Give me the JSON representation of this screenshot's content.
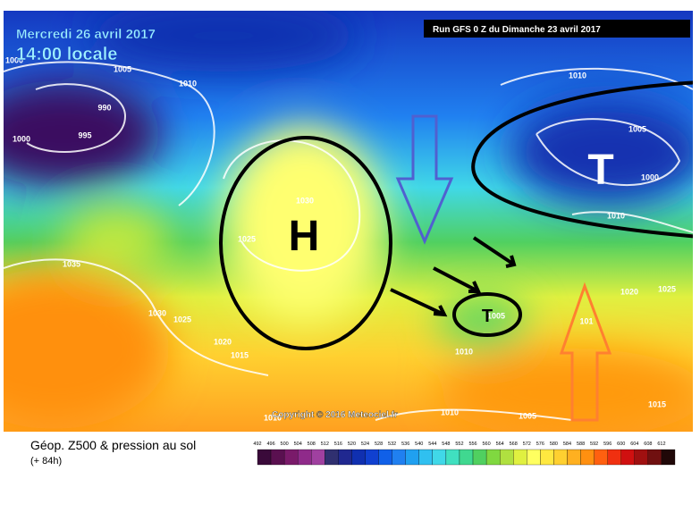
{
  "header": {
    "date": "Mercredi 26 avril 2017",
    "time": "14:00 locale",
    "run": "Run GFS 0 Z du Dimanche 23 avril 2017"
  },
  "map": {
    "isobars": [
      "1000",
      "1005",
      "1010",
      "990",
      "995",
      "1000",
      "1030",
      "1025",
      "1035",
      "1030",
      "1025",
      "1020",
      "1015",
      "1010",
      "1005",
      "1010",
      "1010",
      "1005",
      "1010",
      "1005",
      "1000",
      "1010",
      "1020",
      "1025",
      "101",
      "1015"
    ],
    "systems": [
      "H",
      "T",
      "T"
    ]
  },
  "footer": {
    "copyright": "Copyright © 2016 Meteociel.fr"
  },
  "legend": {
    "title": "Géop. Z500 & pression au sol",
    "subtitle": "(+ 84h)",
    "scale": [
      {
        "label": "492",
        "color": "#3a0a3a"
      },
      {
        "label": "496",
        "color": "#5a1050"
      },
      {
        "label": "500",
        "color": "#7a1a6a"
      },
      {
        "label": "504",
        "color": "#8f2a8a"
      },
      {
        "label": "508",
        "color": "#a040a0"
      },
      {
        "label": "512",
        "color": "#303070"
      },
      {
        "label": "516",
        "color": "#202890"
      },
      {
        "label": "520",
        "color": "#1030b0"
      },
      {
        "label": "524",
        "color": "#1040d0"
      },
      {
        "label": "528",
        "color": "#1060e8"
      },
      {
        "label": "532",
        "color": "#2080f0"
      },
      {
        "label": "536",
        "color": "#20a0f0"
      },
      {
        "label": "540",
        "color": "#30c0f0"
      },
      {
        "label": "544",
        "color": "#40d8e8"
      },
      {
        "label": "548",
        "color": "#40e0c0"
      },
      {
        "label": "552",
        "color": "#40d890"
      },
      {
        "label": "556",
        "color": "#50d060"
      },
      {
        "label": "560",
        "color": "#80d840"
      },
      {
        "label": "564",
        "color": "#b0e040"
      },
      {
        "label": "568",
        "color": "#e0f040"
      },
      {
        "label": "572",
        "color": "#ffff60"
      },
      {
        "label": "576",
        "color": "#ffe840"
      },
      {
        "label": "580",
        "color": "#ffd030"
      },
      {
        "label": "584",
        "color": "#ffb020"
      },
      {
        "label": "588",
        "color": "#ff9010"
      },
      {
        "label": "592",
        "color": "#ff6010"
      },
      {
        "label": "596",
        "color": "#f03010"
      },
      {
        "label": "600",
        "color": "#d01010"
      },
      {
        "label": "604",
        "color": "#a01010"
      },
      {
        "label": "608",
        "color": "#701010"
      },
      {
        "label": "612",
        "color": "#200808"
      }
    ]
  }
}
